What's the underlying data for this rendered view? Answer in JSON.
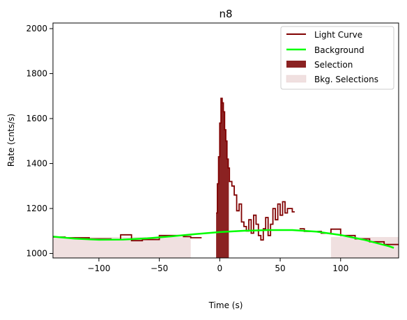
{
  "chart_data": {
    "type": "line",
    "title": "n8",
    "xlabel": "Time (s)",
    "ylabel": "Rate (cnts/s)",
    "xlim": [
      -138,
      148
    ],
    "ylim": [
      980,
      2025
    ],
    "xticks": [
      -100,
      -50,
      0,
      50,
      100
    ],
    "yticks": [
      1000,
      1200,
      1400,
      1600,
      1800,
      2000
    ],
    "grid": false,
    "legend_position": "top-right",
    "legend": [
      "Light Curve",
      "Background",
      "Selection",
      "Bkg. Selections"
    ],
    "colors": {
      "light_curve": "#800000",
      "background": "#00ff00",
      "selection": "#8b2222",
      "bkg_selection": "#f0e0e0"
    },
    "selection": [
      -3,
      7.5
    ],
    "bkg_selections": [
      [
        -138,
        -24
      ],
      [
        92,
        148
      ]
    ],
    "light_curve": {
      "segments": [
        [
          [
            -138,
            1073
          ],
          [
            -128,
            1073
          ],
          [
            -128,
            1070
          ],
          [
            -108,
            1070
          ],
          [
            -108,
            1065
          ],
          [
            -90,
            1065
          ],
          [
            -90,
            1062
          ],
          [
            -82,
            1062
          ],
          [
            -82,
            1083
          ],
          [
            -73,
            1083
          ],
          [
            -73,
            1057
          ],
          [
            -64,
            1057
          ],
          [
            -64,
            1062
          ],
          [
            -50,
            1062
          ],
          [
            -50,
            1080
          ],
          [
            -30,
            1080
          ],
          [
            -30,
            1075
          ],
          [
            -24,
            1075
          ],
          [
            -24,
            1070
          ],
          [
            -15,
            1070
          ]
        ],
        [
          [
            -3,
            1180
          ],
          [
            -2,
            1180
          ],
          [
            -2,
            1310
          ],
          [
            -1,
            1310
          ],
          [
            -1,
            1430
          ],
          [
            0,
            1430
          ],
          [
            0,
            1580
          ],
          [
            1,
            1580
          ],
          [
            1,
            1690
          ],
          [
            2,
            1690
          ],
          [
            2,
            1670
          ],
          [
            3,
            1670
          ],
          [
            3,
            1630
          ],
          [
            4,
            1630
          ],
          [
            4,
            1550
          ],
          [
            5,
            1550
          ],
          [
            5,
            1500
          ],
          [
            6,
            1500
          ],
          [
            6,
            1420
          ],
          [
            7,
            1420
          ],
          [
            7,
            1380
          ],
          [
            8,
            1380
          ],
          [
            8,
            1320
          ],
          [
            10,
            1320
          ],
          [
            10,
            1300
          ],
          [
            12,
            1300
          ],
          [
            12,
            1260
          ],
          [
            14,
            1260
          ],
          [
            14,
            1190
          ],
          [
            16,
            1190
          ],
          [
            16,
            1220
          ],
          [
            18,
            1220
          ],
          [
            18,
            1140
          ],
          [
            20,
            1140
          ],
          [
            20,
            1120
          ],
          [
            22,
            1120
          ],
          [
            22,
            1100
          ],
          [
            24,
            1100
          ],
          [
            24,
            1150
          ],
          [
            26,
            1150
          ],
          [
            26,
            1090
          ],
          [
            28,
            1090
          ],
          [
            28,
            1170
          ],
          [
            30,
            1170
          ],
          [
            30,
            1130
          ],
          [
            32,
            1130
          ],
          [
            32,
            1080
          ],
          [
            34,
            1080
          ],
          [
            34,
            1060
          ],
          [
            36,
            1060
          ],
          [
            36,
            1110
          ],
          [
            38,
            1110
          ],
          [
            38,
            1160
          ],
          [
            40,
            1160
          ],
          [
            40,
            1080
          ],
          [
            42,
            1080
          ],
          [
            42,
            1130
          ],
          [
            44,
            1130
          ],
          [
            44,
            1200
          ],
          [
            46,
            1200
          ],
          [
            46,
            1150
          ],
          [
            48,
            1150
          ],
          [
            48,
            1220
          ],
          [
            50,
            1220
          ],
          [
            50,
            1170
          ],
          [
            52,
            1170
          ],
          [
            52,
            1230
          ],
          [
            54,
            1230
          ],
          [
            54,
            1180
          ],
          [
            56,
            1180
          ],
          [
            56,
            1200
          ],
          [
            60,
            1200
          ],
          [
            60,
            1185
          ],
          [
            62,
            1185
          ]
        ],
        [
          [
            66,
            1110
          ],
          [
            70,
            1110
          ],
          [
            70,
            1098
          ],
          [
            84,
            1098
          ],
          [
            84,
            1090
          ],
          [
            92,
            1090
          ],
          [
            92,
            1108
          ],
          [
            100,
            1108
          ],
          [
            100,
            1080
          ],
          [
            112,
            1080
          ],
          [
            112,
            1065
          ],
          [
            124,
            1065
          ],
          [
            124,
            1052
          ],
          [
            136,
            1052
          ],
          [
            136,
            1040
          ],
          [
            148,
            1040
          ]
        ]
      ]
    },
    "background_curve": {
      "x": [
        -138,
        -120,
        -100,
        -80,
        -60,
        -40,
        -20,
        0,
        20,
        40,
        60,
        80,
        100,
        120,
        140,
        144
      ],
      "y": [
        1075,
        1066,
        1061,
        1062,
        1067,
        1076,
        1086,
        1095,
        1101,
        1104,
        1104,
        1097,
        1082,
        1060,
        1032,
        1025
      ]
    }
  }
}
